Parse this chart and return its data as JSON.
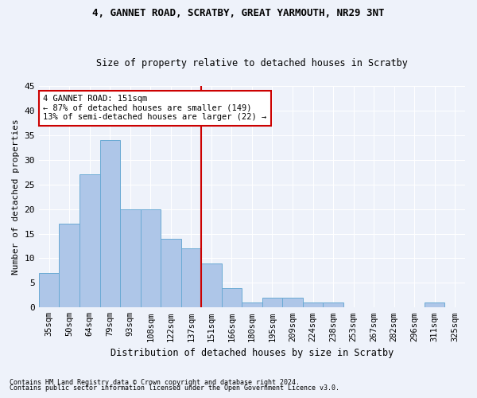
{
  "title1": "4, GANNET ROAD, SCRATBY, GREAT YARMOUTH, NR29 3NT",
  "title2": "Size of property relative to detached houses in Scratby",
  "xlabel": "Distribution of detached houses by size in Scratby",
  "ylabel": "Number of detached properties",
  "categories": [
    "35sqm",
    "50sqm",
    "64sqm",
    "79sqm",
    "93sqm",
    "108sqm",
    "122sqm",
    "137sqm",
    "151sqm",
    "166sqm",
    "180sqm",
    "195sqm",
    "209sqm",
    "224sqm",
    "238sqm",
    "253sqm",
    "267sqm",
    "282sqm",
    "296sqm",
    "311sqm",
    "325sqm"
  ],
  "values": [
    7,
    17,
    27,
    34,
    20,
    20,
    14,
    12,
    9,
    4,
    1,
    2,
    2,
    1,
    1,
    0,
    0,
    0,
    0,
    1,
    0
  ],
  "bar_color": "#aec6e8",
  "bar_edge_color": "#6aaad4",
  "vline_color": "#cc0000",
  "ylim": [
    0,
    45
  ],
  "yticks": [
    0,
    5,
    10,
    15,
    20,
    25,
    30,
    35,
    40,
    45
  ],
  "annotation_title": "4 GANNET ROAD: 151sqm",
  "annotation_line1": "← 87% of detached houses are smaller (149)",
  "annotation_line2": "13% of semi-detached houses are larger (22) →",
  "annotation_box_color": "#ffffff",
  "annotation_box_edge": "#cc0000",
  "footnote1": "Contains HM Land Registry data © Crown copyright and database right 2024.",
  "footnote2": "Contains public sector information licensed under the Open Government Licence v3.0.",
  "background_color": "#eef2fa",
  "grid_color": "#ffffff"
}
